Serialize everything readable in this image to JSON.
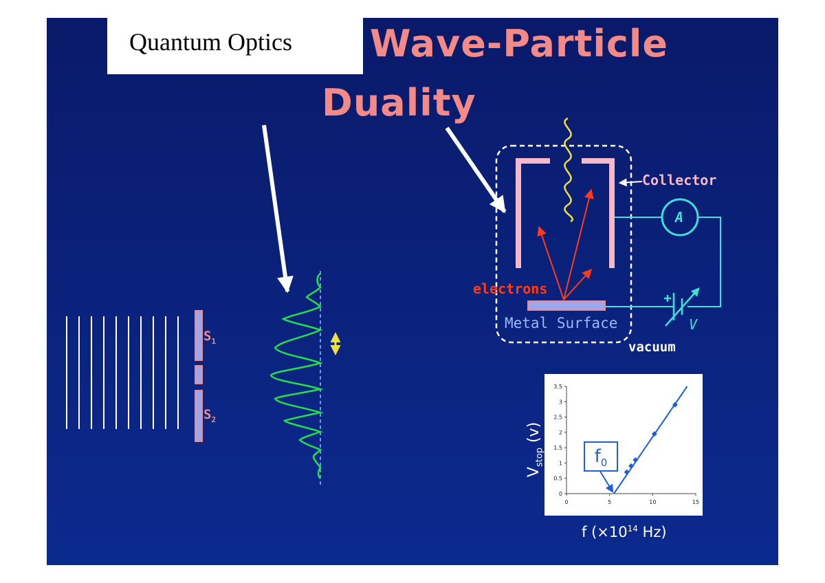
{
  "header": {
    "label": "Quantum Optics"
  },
  "title": {
    "line1": "Wave-Particle",
    "line2": "Duality"
  },
  "slits": {
    "s1": "S",
    "s1_sub": "1",
    "s2": "S",
    "s2_sub": "2"
  },
  "photoelectric": {
    "electrons_label": "electrons",
    "surface_label": "Metal Surface",
    "collector_label": "Collector",
    "ammeter_label": "A",
    "voltage_label": "V",
    "vacuum_label": "vacuum"
  },
  "colors": {
    "title": "#f48a88",
    "background": "#0b2a8e",
    "wave": "#22e04a",
    "circuit": "#3fe0d8",
    "photon": "#f0e040",
    "electron_arrows": "#ff3b1a"
  },
  "chart_data": {
    "type": "scatter",
    "ylabel": "V",
    "ylabel_sub": "stop",
    "ylabel_unit": "(v)",
    "xlabel": "f (×10",
    "xlabel_sup": "14",
    "xlabel_unit": " Hz)",
    "xlim": [
      0,
      15
    ],
    "ylim": [
      0,
      3.5
    ],
    "x_ticks": [
      "0",
      "5",
      "10",
      "15"
    ],
    "y_ticks": [
      "0",
      "0.5",
      "1",
      "1.5",
      "2",
      "2.5",
      "3",
      "3.5"
    ],
    "points": [
      {
        "x": 7.0,
        "y": 0.7
      },
      {
        "x": 7.5,
        "y": 0.9
      },
      {
        "x": 8.0,
        "y": 1.1
      },
      {
        "x": 10.2,
        "y": 1.95
      },
      {
        "x": 12.6,
        "y": 2.9
      }
    ],
    "fit_line": {
      "x": [
        5.5,
        14
      ],
      "y": [
        0,
        3.5
      ]
    },
    "annotation": "f",
    "annotation_sub": "0",
    "grid": false
  }
}
